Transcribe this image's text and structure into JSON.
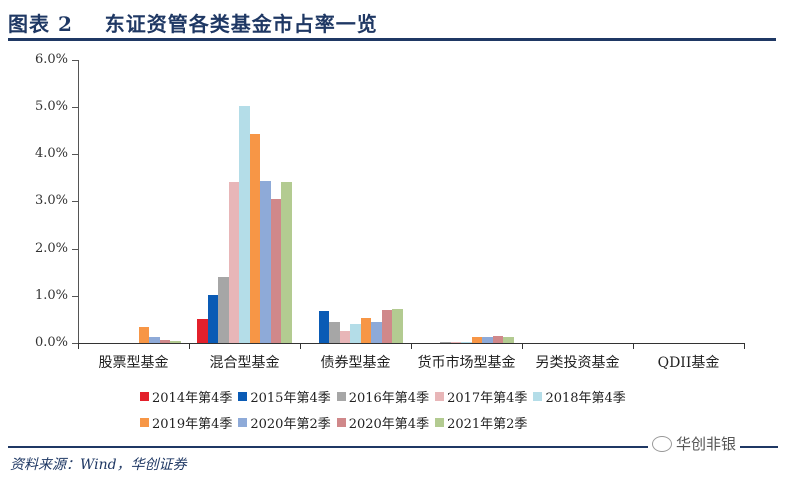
{
  "title": "图表 2    东证资管各类基金市占率一览",
  "source": "资料来源：Wind，华创证券",
  "watermark": "华创非银",
  "chart_data": {
    "type": "bar",
    "title": "东证资管各类基金市占率一览",
    "xlabel": "",
    "ylabel": "",
    "ylim": [
      0,
      6.0
    ],
    "y_ticks": [
      "0.0%",
      "1.0%",
      "2.0%",
      "3.0%",
      "4.0%",
      "5.0%",
      "6.0%"
    ],
    "grid": false,
    "legend_position": "bottom",
    "categories": [
      "股票型基金",
      "混合型基金",
      "债券型基金",
      "货币市场型基金",
      "另类投资基金",
      "QDII基金"
    ],
    "series": [
      {
        "name": "2014年第4季",
        "color": "#e3202b",
        "values": [
          0,
          0.5,
          0,
          0,
          0,
          0
        ]
      },
      {
        "name": "2015年第4季",
        "color": "#0a5bb5",
        "values": [
          0,
          1.02,
          0.67,
          0,
          0,
          0
        ]
      },
      {
        "name": "2016年第4季",
        "color": "#a6a6a6",
        "values": [
          0,
          1.4,
          0.45,
          0.02,
          0,
          0
        ]
      },
      {
        "name": "2017年第4季",
        "color": "#e8b6b8",
        "values": [
          0,
          3.42,
          0.25,
          0.02,
          0,
          0
        ]
      },
      {
        "name": "2018年第4季",
        "color": "#b4dde8",
        "values": [
          0,
          5.02,
          0.4,
          0.03,
          0,
          0
        ]
      },
      {
        "name": "2019年第4季",
        "color": "#f79646",
        "values": [
          0.33,
          4.42,
          0.53,
          0.12,
          0,
          0
        ]
      },
      {
        "name": "2020年第2季",
        "color": "#8eaad8",
        "values": [
          0.12,
          3.44,
          0.45,
          0.12,
          0,
          0
        ]
      },
      {
        "name": "2020年第4季",
        "color": "#d0888a",
        "values": [
          0.06,
          3.06,
          0.7,
          0.15,
          0,
          0
        ]
      },
      {
        "name": "2021年第2季",
        "color": "#b3cb91",
        "values": [
          0.04,
          3.42,
          0.71,
          0.12,
          0,
          0
        ]
      }
    ]
  }
}
